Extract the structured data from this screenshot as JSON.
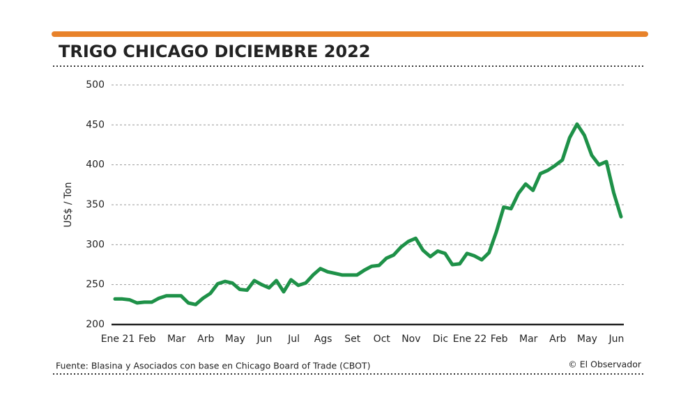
{
  "chart_data": {
    "type": "line",
    "title": "TRIGO CHICAGO DICIEMBRE 2022",
    "y_label": "US$ / Ton",
    "source": "Fuente: Blasina y Asociados con base en Chicago Board of Trade (CBOT)",
    "credit": "© El Observador",
    "categories": [
      "Ene 21",
      null,
      null,
      null,
      "Feb",
      null,
      null,
      null,
      "Mar",
      null,
      null,
      null,
      "Arb",
      null,
      null,
      null,
      "May",
      null,
      null,
      null,
      "Jun",
      null,
      null,
      null,
      "Jul",
      null,
      null,
      null,
      "Ags",
      null,
      null,
      null,
      "Set",
      null,
      null,
      null,
      "Oct",
      null,
      null,
      null,
      "Nov",
      null,
      null,
      null,
      "Dic",
      null,
      null,
      null,
      "Ene 22",
      null,
      null,
      null,
      "Feb",
      null,
      null,
      null,
      "Mar",
      null,
      null,
      null,
      "Arb",
      null,
      null,
      null,
      "May",
      null,
      null,
      null,
      "Jun",
      null
    ],
    "series": [
      {
        "name": "Trigo",
        "color": "#1e9148",
        "values": [
          232,
          232,
          231,
          227,
          228,
          228,
          233,
          236,
          236,
          236,
          227,
          225,
          233,
          239,
          251,
          254,
          252,
          244,
          243,
          255,
          250,
          246,
          255,
          241,
          256,
          249,
          252,
          262,
          270,
          266,
          264,
          262,
          262,
          262,
          268,
          273,
          274,
          283,
          287,
          297,
          304,
          308,
          293,
          285,
          292,
          289,
          275,
          276,
          289,
          286,
          281,
          290,
          316,
          347,
          345,
          364,
          376,
          368,
          389,
          393,
          399,
          406,
          434,
          451,
          437,
          412,
          400,
          404,
          365,
          335
        ]
      }
    ],
    "ylim": [
      200,
      500
    ],
    "yticks": [
      200,
      250,
      300,
      350,
      400,
      450,
      500
    ],
    "grid": true
  }
}
